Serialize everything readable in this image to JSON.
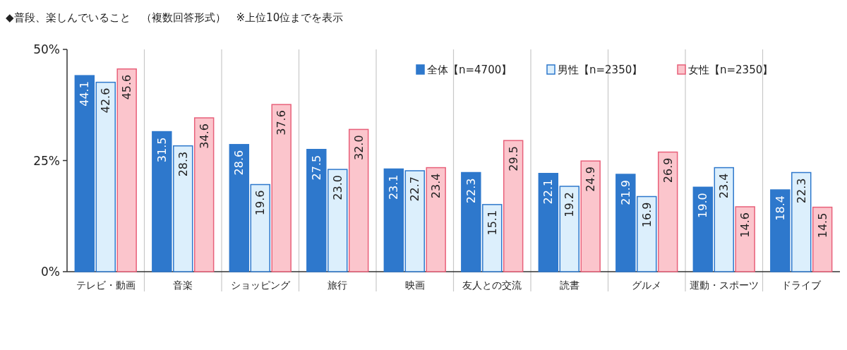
{
  "chart_data": {
    "type": "bar",
    "title": "◆普段、楽しんでいること　（複数回答形式）　※上位10位までを表示",
    "categories": [
      "テレビ・動画",
      "音楽",
      "ショッピング",
      "旅行",
      "映画",
      "友人との交流",
      "読書",
      "グルメ",
      "運動・スポーツ",
      "ドライブ"
    ],
    "series": [
      {
        "name": "全体【n=4700】",
        "color": "#2e78cc",
        "values": [
          44.1,
          31.5,
          28.6,
          27.5,
          23.1,
          22.3,
          22.1,
          21.9,
          19.0,
          18.4
        ],
        "value_labels": [
          "44.1",
          "31.5",
          "28.6",
          "27.5",
          "23.1",
          "22.3",
          "22.1",
          "21.9",
          "19.0",
          "18.4"
        ]
      },
      {
        "name": "男性【n=2350】",
        "color": "#dceffc",
        "values": [
          42.6,
          28.3,
          19.6,
          23.0,
          22.7,
          15.1,
          19.2,
          16.9,
          23.4,
          22.3
        ],
        "value_labels": [
          "42.6",
          "28.3",
          "19.6",
          "23.0",
          "22.7",
          "15.1",
          "19.2",
          "16.9",
          "23.4",
          "22.3"
        ]
      },
      {
        "name": "女性【n=2350】",
        "color": "#fbc5cc",
        "values": [
          45.6,
          34.6,
          37.6,
          32.0,
          23.4,
          29.5,
          24.9,
          26.9,
          14.6,
          14.5
        ],
        "value_labels": [
          "45.6",
          "34.6",
          "37.6",
          "32.0",
          "23.4",
          "29.5",
          "24.9",
          "26.9",
          "14.6",
          "14.5"
        ]
      }
    ],
    "ylim": [
      0,
      50
    ],
    "yticks": [
      {
        "value": 0,
        "label": "0%"
      },
      {
        "value": 25,
        "label": "25%"
      },
      {
        "value": 50,
        "label": "50%"
      }
    ],
    "grid": "x",
    "legend": "top right"
  }
}
